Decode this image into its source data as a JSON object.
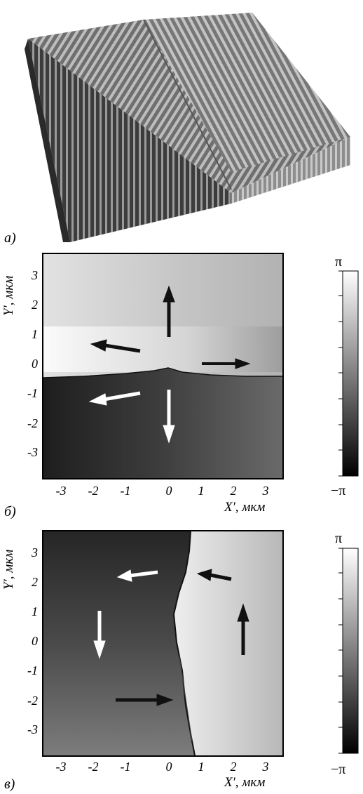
{
  "panels": {
    "a": {
      "label": "а)"
    },
    "b": {
      "label": "б)"
    },
    "c": {
      "label": "в)"
    }
  },
  "axes": {
    "xlabel": "X′, мкм",
    "ylabel": "Y′, мкм",
    "y_ticks": [
      "3",
      "2",
      "1",
      "0",
      "-1",
      "-2",
      "-3"
    ],
    "x_ticks": [
      "-3",
      "-2",
      "-1",
      "0",
      "1",
      "2",
      "3"
    ]
  },
  "colorbar": {
    "top": "π",
    "bottom": "−π"
  },
  "colors": {
    "dark": "#1a1a1a",
    "mid": "#7a7a7a",
    "light": "#e8e8e8",
    "arrow_black": "#000000",
    "arrow_white": "#ffffff"
  }
}
